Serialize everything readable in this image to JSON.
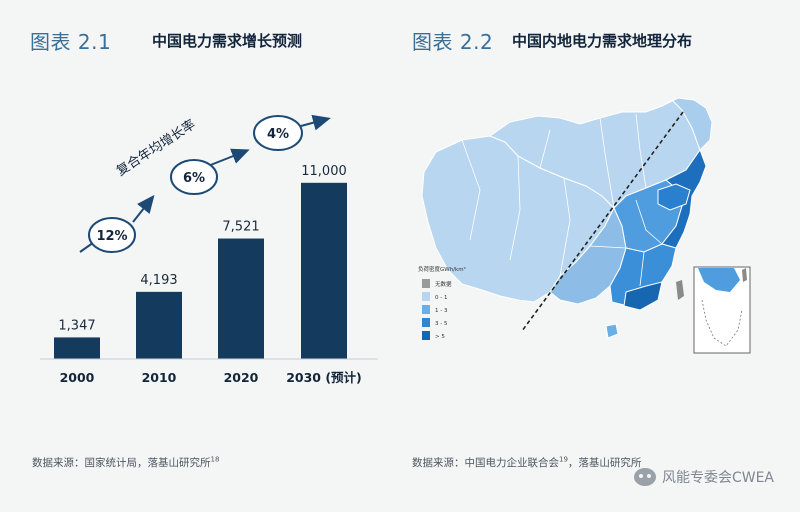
{
  "fig1": {
    "number": "图表 2.1",
    "title": "中国电力需求增长预测",
    "growth_label": "复合年均增长率",
    "growth_rates": [
      "12%",
      "6%",
      "4%"
    ],
    "source": "数据来源：国家统计局，落基山研究所",
    "source_ref": "18"
  },
  "fig2": {
    "number": "图表 2.2",
    "title": "中国内地电力需求地理分布",
    "legend_title": "负荷密度GWh/km²",
    "legend_items": [
      {
        "label": "无数据",
        "color": "#9a9a9a"
      },
      {
        "label": "0 - 1",
        "color": "#b8d4ee"
      },
      {
        "label": "1 - 3",
        "color": "#6aaee6"
      },
      {
        "label": "3 - 5",
        "color": "#2f86d2"
      },
      {
        "label": "> 5",
        "color": "#1766b2"
      }
    ],
    "source": "数据来源：中国电力企业联合会",
    "source_ref": "19",
    "source_tail": "，落基山研究所"
  },
  "watermark": "风能专委会CWEA",
  "colors": {
    "bar": "#143a5e",
    "accent": "#3a6f96",
    "arrow": "#1d4a75"
  },
  "chart_data": {
    "type": "bar",
    "categories": [
      "2000",
      "2010",
      "2020",
      "2030 (预计)"
    ],
    "values": [
      1347,
      4193,
      7521,
      11000
    ],
    "value_labels": [
      "1,347",
      "4,193",
      "7,521",
      "11,000"
    ],
    "title": "中国电力需求增长预测",
    "xlabel": "",
    "ylabel": "",
    "ylim": [
      0,
      11800
    ],
    "grid": false,
    "annotations": [
      "复合年均增长率",
      "12%",
      "6%",
      "4%"
    ]
  }
}
